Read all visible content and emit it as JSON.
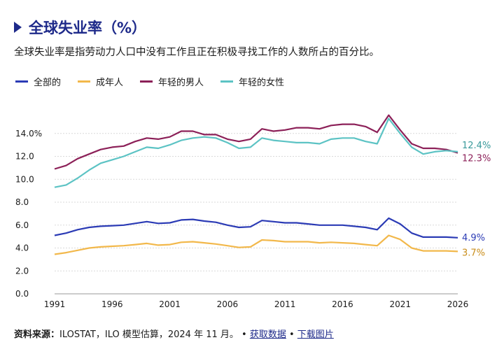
{
  "header": {
    "title": "全球失业率（%）",
    "subtitle": "全球失业率是指劳动力人口中没有工作且正在积极寻找工作的人数所占的百分比。"
  },
  "legend": [
    {
      "label": "全部的",
      "color": "#2b3bb5"
    },
    {
      "label": "成年人",
      "color": "#f2b84b"
    },
    {
      "label": "年轻的男人",
      "color": "#8c2058"
    },
    {
      "label": "年轻的女性",
      "color": "#5cc3c4"
    }
  ],
  "footer": {
    "source_label": "资料来源：",
    "source_text": "ILOSTAT，ILO 模型估算，2024 年 11 月。",
    "sep1": "•",
    "link_data": "获取数据",
    "sep2": "•",
    "link_image": "下载图片"
  },
  "chart_data": {
    "type": "line",
    "x": [
      1991,
      1992,
      1993,
      1994,
      1995,
      1996,
      1997,
      1998,
      1999,
      2000,
      2001,
      2002,
      2003,
      2004,
      2005,
      2006,
      2007,
      2008,
      2009,
      2010,
      2011,
      2012,
      2013,
      2014,
      2015,
      2016,
      2017,
      2018,
      2019,
      2020,
      2021,
      2022,
      2023,
      2024,
      2025,
      2026
    ],
    "x_ticks": [
      1991,
      1996,
      2001,
      2006,
      2011,
      2016,
      2021,
      2026
    ],
    "y_ticks": [
      "0.0",
      "2.0",
      "4.0",
      "6.0",
      "8.0",
      "10.0",
      "12.0",
      "14.0%"
    ],
    "ylim": [
      0,
      16
    ],
    "grid": true,
    "series": [
      {
        "name": "全部的",
        "color": "#2b3bb5",
        "end_label": "4.9%",
        "values": [
          5.1,
          5.3,
          5.6,
          5.8,
          5.9,
          5.95,
          6.0,
          6.15,
          6.3,
          6.15,
          6.2,
          6.45,
          6.5,
          6.35,
          6.25,
          6.0,
          5.8,
          5.85,
          6.4,
          6.3,
          6.2,
          6.2,
          6.1,
          6.0,
          6.0,
          6.0,
          5.9,
          5.8,
          5.6,
          6.6,
          6.1,
          5.3,
          4.95,
          4.95,
          4.95,
          4.9
        ]
      },
      {
        "name": "成年人",
        "color": "#f2b84b",
        "end_label": "3.7%",
        "values": [
          3.45,
          3.6,
          3.8,
          4.0,
          4.1,
          4.15,
          4.2,
          4.3,
          4.4,
          4.25,
          4.3,
          4.5,
          4.55,
          4.45,
          4.35,
          4.2,
          4.05,
          4.1,
          4.7,
          4.65,
          4.55,
          4.55,
          4.55,
          4.45,
          4.5,
          4.45,
          4.4,
          4.3,
          4.2,
          5.1,
          4.75,
          4.0,
          3.75,
          3.75,
          3.75,
          3.7
        ]
      },
      {
        "name": "年轻的男人",
        "color": "#8c2058",
        "end_label": "12.3%",
        "values": [
          10.9,
          11.2,
          11.8,
          12.2,
          12.6,
          12.8,
          12.9,
          13.3,
          13.6,
          13.5,
          13.7,
          14.2,
          14.2,
          13.9,
          13.9,
          13.5,
          13.3,
          13.5,
          14.4,
          14.2,
          14.3,
          14.5,
          14.5,
          14.4,
          14.7,
          14.8,
          14.8,
          14.6,
          14.1,
          15.6,
          14.3,
          13.1,
          12.7,
          12.7,
          12.6,
          12.3
        ]
      },
      {
        "name": "年轻的女性",
        "color": "#5cc3c4",
        "end_label": "12.4%",
        "values": [
          9.3,
          9.5,
          10.1,
          10.8,
          11.4,
          11.7,
          12.0,
          12.4,
          12.8,
          12.7,
          13.0,
          13.4,
          13.6,
          13.7,
          13.6,
          13.2,
          12.7,
          12.8,
          13.6,
          13.4,
          13.3,
          13.2,
          13.2,
          13.1,
          13.5,
          13.6,
          13.6,
          13.3,
          13.1,
          15.3,
          14.0,
          12.8,
          12.2,
          12.4,
          12.5,
          12.4
        ]
      }
    ]
  }
}
